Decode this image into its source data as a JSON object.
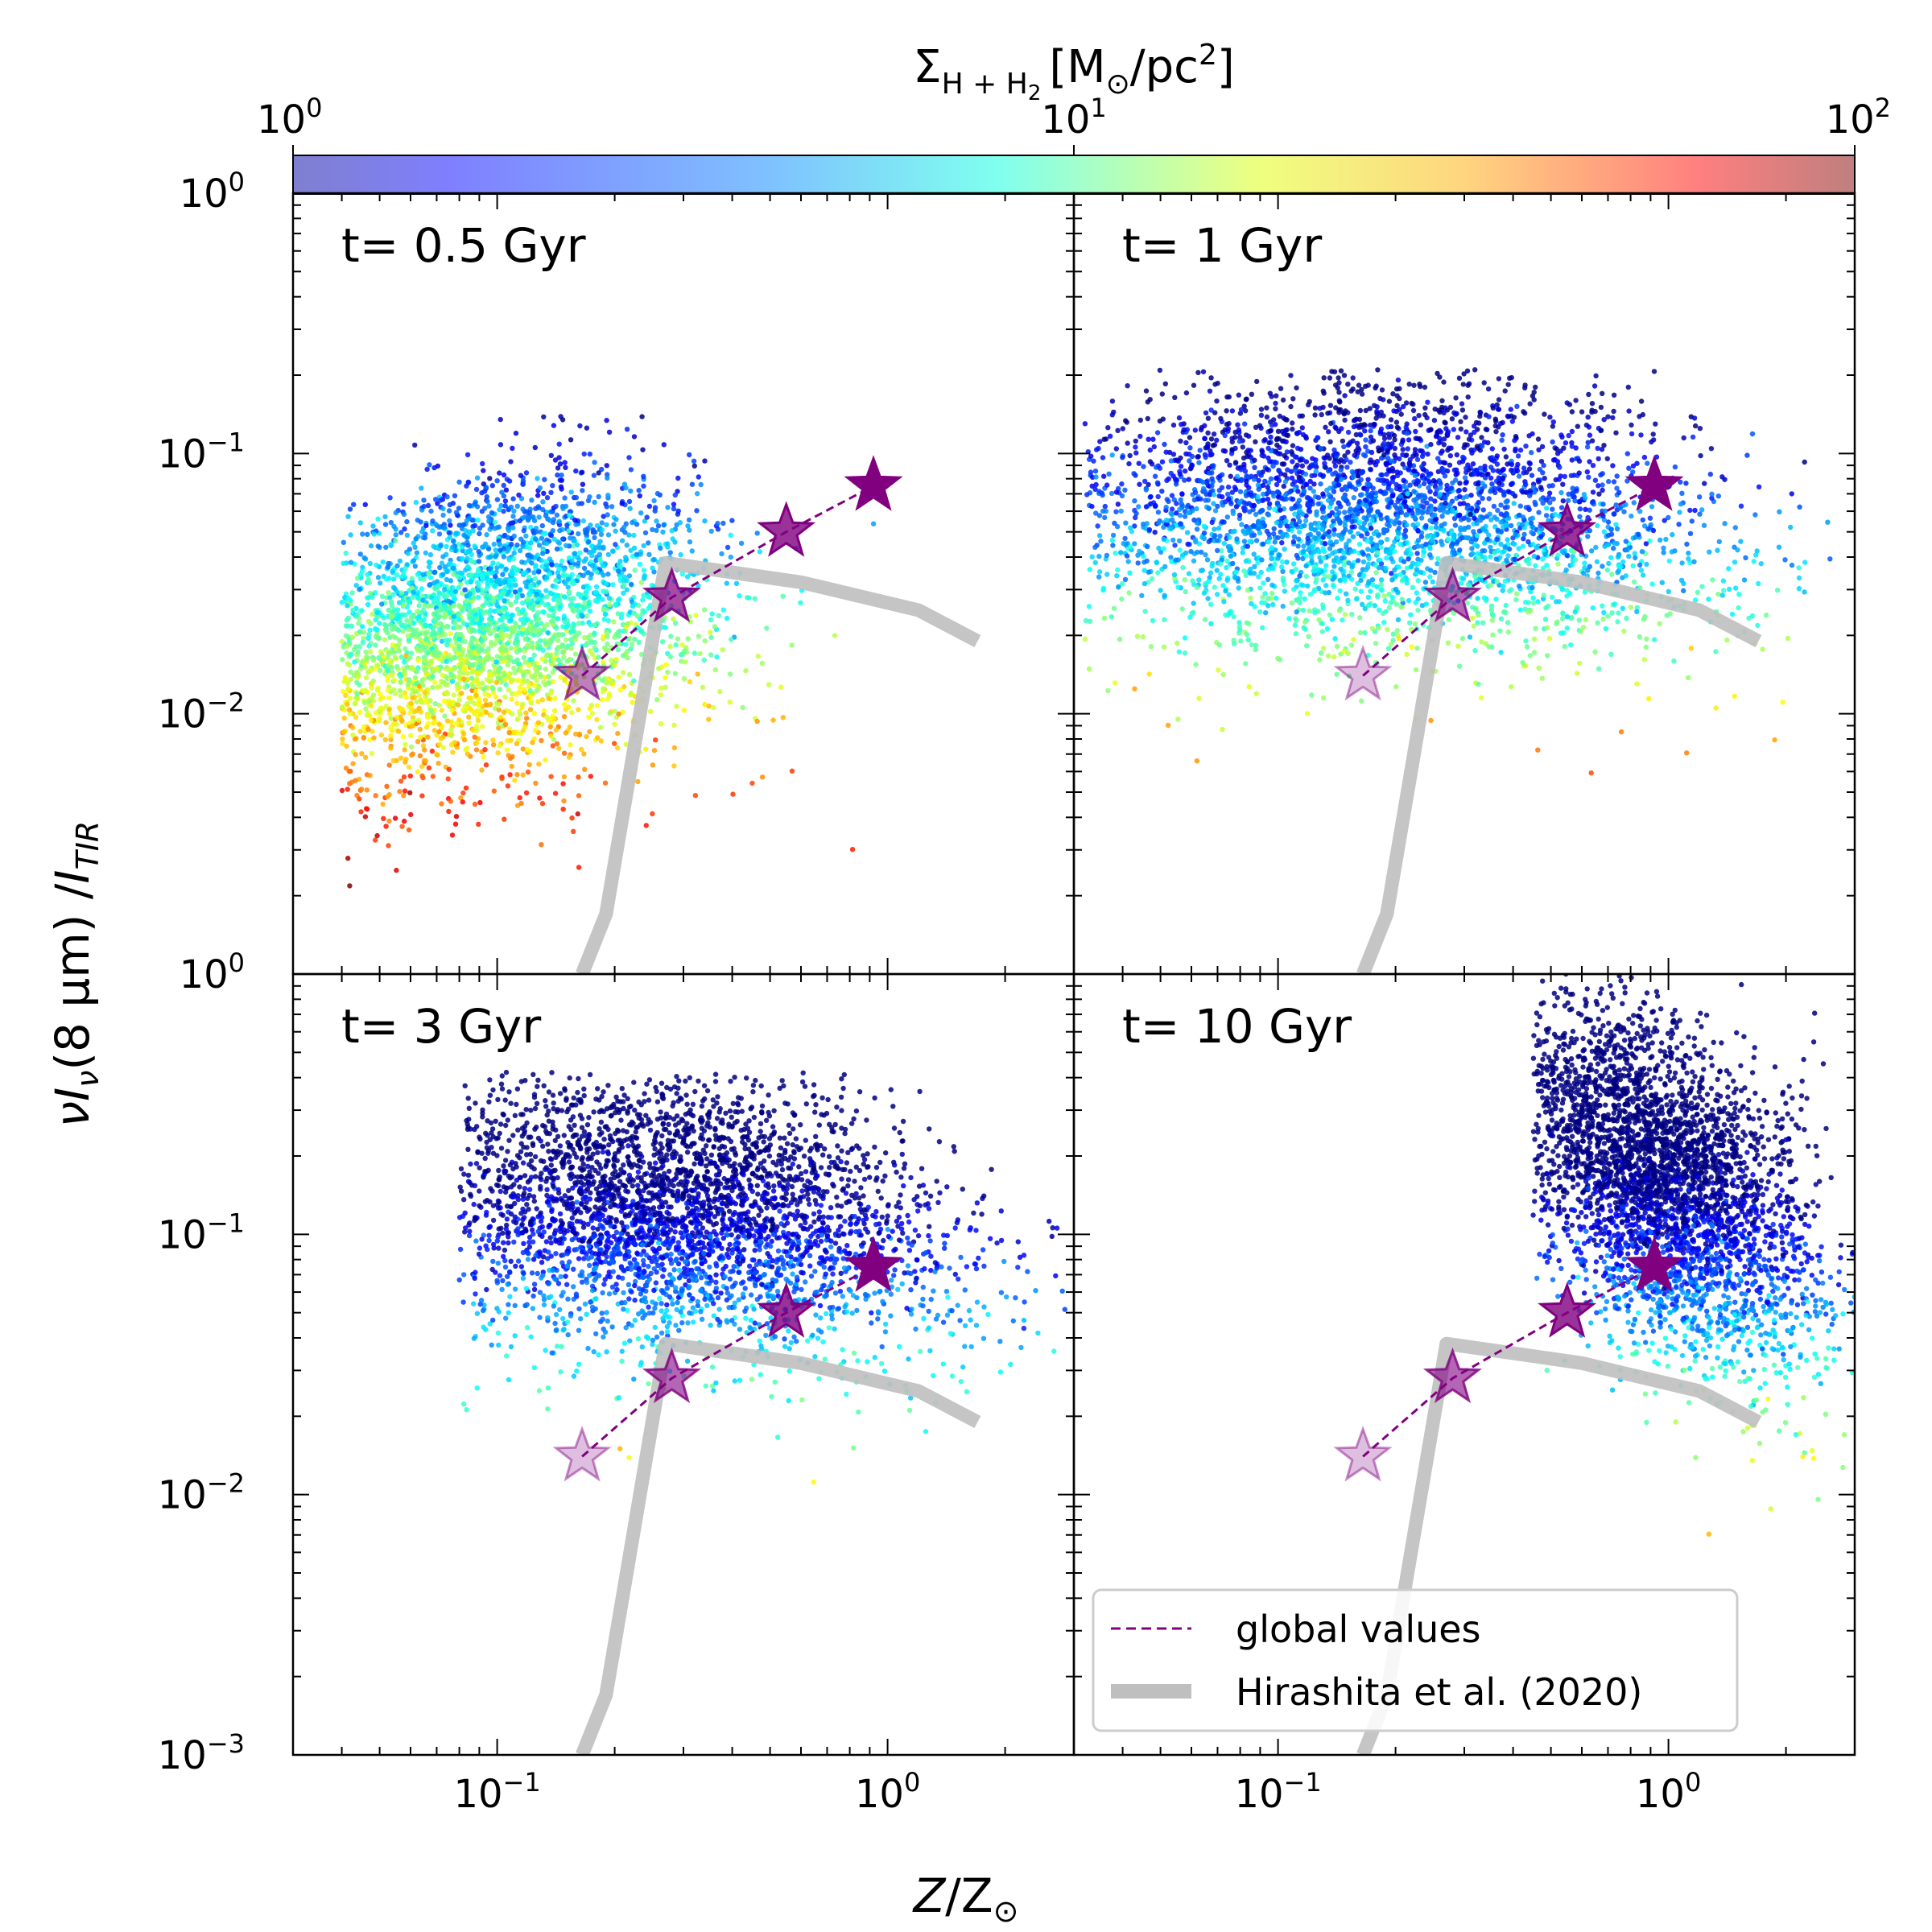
{
  "colorbar": {
    "label_main": "Σ",
    "label_sub": "H + H",
    "label_sub2": "2",
    "label_units": "[M",
    "label_sun": "⊙",
    "label_units2": "/pc",
    "label_sup": "2",
    "label_close": "]",
    "ticks": [
      {
        "base": "10",
        "exp": "0",
        "value": 1
      },
      {
        "base": "10",
        "exp": "1",
        "value": 10
      },
      {
        "base": "10",
        "exp": "2",
        "value": 100
      }
    ],
    "scale": "log",
    "range": [
      1,
      100
    ],
    "colormap": "jet"
  },
  "axes": {
    "ylabel_main": "νI",
    "ylabel_sub": "ν",
    "ylabel_mid": "(8 μm) /",
    "ylabel_I": "I",
    "ylabel_sub2": "TIR",
    "xlabel_Z": "Z",
    "xlabel_slash": "/Z",
    "xlabel_sun": "⊙",
    "xscale": "log",
    "yscale": "log",
    "xlim": [
      0.03,
      3.0
    ],
    "ylim": [
      0.001,
      1.0
    ],
    "x_ticks": [
      {
        "base": "10",
        "exp": "−1",
        "value": 0.1
      },
      {
        "base": "10",
        "exp": "0",
        "value": 1.0
      }
    ],
    "y_ticks": [
      {
        "base": "10",
        "exp": "−3",
        "value": 0.001
      },
      {
        "base": "10",
        "exp": "−2",
        "value": 0.01
      },
      {
        "base": "10",
        "exp": "−1",
        "value": 0.1
      },
      {
        "base": "10",
        "exp": "0",
        "value": 1.0
      }
    ]
  },
  "legend": {
    "position": "lower-left of bottom-right panel",
    "global_label": "global values",
    "hirashita_label": "Hirashita et al. (2020)"
  },
  "colors": {
    "global_line": "#800080",
    "star": "#800080",
    "hirashita": "#bfbfbf"
  },
  "chart_data": {
    "type": "scatter",
    "panels": [
      {
        "label": "t= 0.5 Gyr",
        "cloud": {
          "x_range": [
            0.04,
            1.7
          ],
          "y_peak": 0.1,
          "density": 1.0
        },
        "stars": [
          {
            "x": 0.165,
            "y": 0.014,
            "alpha": 0.5
          },
          {
            "x": 0.28,
            "y": 0.028,
            "alpha": 0.7
          },
          {
            "x": 0.55,
            "y": 0.05,
            "alpha": 0.8
          },
          {
            "x": 0.92,
            "y": 0.075,
            "alpha": 1.0
          }
        ]
      },
      {
        "label": "t= 1 Gyr",
        "cloud": {
          "x_range": [
            0.032,
            2.7
          ],
          "y_peak": 0.15,
          "density": 1.0
        },
        "stars": [
          {
            "x": 0.165,
            "y": 0.014,
            "alpha": 0.25
          },
          {
            "x": 0.28,
            "y": 0.028,
            "alpha": 0.6
          },
          {
            "x": 0.55,
            "y": 0.05,
            "alpha": 0.8
          },
          {
            "x": 0.92,
            "y": 0.075,
            "alpha": 1.0
          }
        ]
      },
      {
        "label": "t= 3 Gyr",
        "cloud": {
          "x_range": [
            0.08,
            2.9
          ],
          "y_peak": 0.3,
          "density": 1.0
        },
        "stars": [
          {
            "x": 0.165,
            "y": 0.014,
            "alpha": 0.25
          },
          {
            "x": 0.28,
            "y": 0.028,
            "alpha": 0.6
          },
          {
            "x": 0.55,
            "y": 0.05,
            "alpha": 0.8
          },
          {
            "x": 0.92,
            "y": 0.075,
            "alpha": 1.0
          }
        ]
      },
      {
        "label": "t= 10 Gyr",
        "cloud": {
          "x_range": [
            0.45,
            3.0
          ],
          "y_peak": 0.9,
          "density": 1.0
        },
        "stars": [
          {
            "x": 0.165,
            "y": 0.014,
            "alpha": 0.25
          },
          {
            "x": 0.28,
            "y": 0.028,
            "alpha": 0.6
          },
          {
            "x": 0.55,
            "y": 0.05,
            "alpha": 0.8
          },
          {
            "x": 0.92,
            "y": 0.075,
            "alpha": 1.0
          }
        ]
      }
    ],
    "hirashita_curve": [
      {
        "x": 0.165,
        "y": 0.001
      },
      {
        "x": 0.19,
        "y": 0.0017
      },
      {
        "x": 0.27,
        "y": 0.038
      },
      {
        "x": 0.6,
        "y": 0.032
      },
      {
        "x": 1.2,
        "y": 0.025
      },
      {
        "x": 1.7,
        "y": 0.019
      }
    ]
  }
}
